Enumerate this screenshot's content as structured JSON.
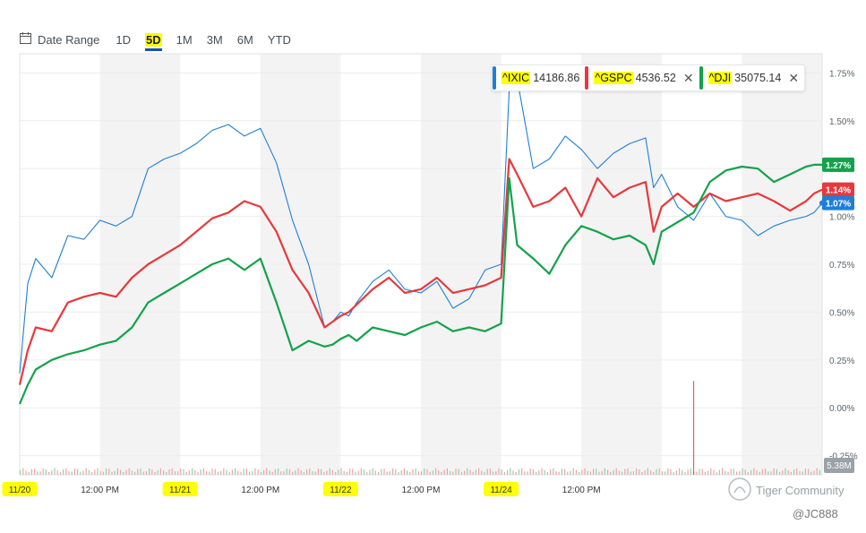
{
  "toolbar": {
    "date_range_label": "Date Range",
    "ranges": [
      "1D",
      "5D",
      "1M",
      "3M",
      "6M",
      "YTD"
    ],
    "active_range": "5D"
  },
  "legend": [
    {
      "symbol": "^IXIC",
      "value": "14186.86",
      "color": "#1e7fd6"
    },
    {
      "symbol": "^GSPC",
      "value": "4536.52",
      "color": "#e8383d"
    },
    {
      "symbol": "^DJI",
      "value": "35075.14",
      "color": "#13a24b"
    }
  ],
  "chart_data": {
    "type": "line",
    "x_ticks": [
      "11/20",
      "12:00 PM",
      "11/21",
      "12:00 PM",
      "11/22",
      "12:00 PM",
      "11/24",
      "12:00 PM"
    ],
    "highlighted_x_ticks": [
      "11/20",
      "11/21",
      "11/22",
      "11/24"
    ],
    "y_ticks": [
      "1.75%",
      "1.50%",
      "1.25%",
      "1.00%",
      "0.75%",
      "0.50%",
      "0.25%",
      "0.00%",
      "-0.25%"
    ],
    "ylim": [
      -0.35,
      1.85
    ],
    "x_range": [
      0,
      5
    ],
    "grid": true,
    "legend_position": "top-right",
    "last_value_labels": [
      {
        "series": "^DJI",
        "label": "1.27%",
        "color": "#13a24b"
      },
      {
        "series": "^GSPC",
        "label": "1.14%",
        "color": "#e8383d"
      },
      {
        "series": "^IXIC",
        "label": "1.07%",
        "color": "#1e7fd6"
      }
    ],
    "volume_label": "5.38M",
    "series": [
      {
        "name": "^IXIC",
        "color": "#1e7fd6",
        "x": [
          0,
          0.05,
          0.1,
          0.2,
          0.3,
          0.4,
          0.5,
          0.6,
          0.7,
          0.8,
          0.9,
          1.0,
          1.1,
          1.2,
          1.3,
          1.4,
          1.5,
          1.6,
          1.7,
          1.8,
          1.9,
          1.95,
          2.0,
          2.05,
          2.1,
          2.2,
          2.3,
          2.4,
          2.5,
          2.6,
          2.7,
          2.8,
          2.9,
          3.0,
          3.05,
          3.1,
          3.2,
          3.3,
          3.4,
          3.5,
          3.6,
          3.7,
          3.8,
          3.9,
          3.95,
          4.0,
          4.1,
          4.2,
          4.3,
          4.4,
          4.5,
          4.6,
          4.7,
          4.8,
          4.9,
          4.95,
          5.0
        ],
        "values": [
          0.18,
          0.65,
          0.78,
          0.68,
          0.9,
          0.88,
          0.98,
          0.95,
          1.0,
          1.25,
          1.3,
          1.33,
          1.38,
          1.45,
          1.48,
          1.42,
          1.46,
          1.28,
          0.98,
          0.75,
          0.42,
          0.45,
          0.5,
          0.48,
          0.55,
          0.66,
          0.72,
          0.62,
          0.6,
          0.66,
          0.52,
          0.57,
          0.72,
          0.75,
          1.66,
          1.72,
          1.25,
          1.3,
          1.42,
          1.35,
          1.25,
          1.33,
          1.38,
          1.41,
          1.15,
          1.22,
          1.05,
          0.98,
          1.12,
          1.0,
          0.98,
          0.9,
          0.95,
          0.98,
          1.0,
          1.02,
          1.07
        ]
      },
      {
        "name": "^GSPC",
        "color": "#e8383d",
        "x": [
          0,
          0.05,
          0.1,
          0.2,
          0.3,
          0.4,
          0.5,
          0.6,
          0.7,
          0.8,
          0.9,
          1.0,
          1.1,
          1.2,
          1.3,
          1.4,
          1.5,
          1.6,
          1.7,
          1.8,
          1.9,
          1.95,
          2.0,
          2.05,
          2.1,
          2.2,
          2.3,
          2.4,
          2.5,
          2.6,
          2.7,
          2.8,
          2.9,
          3.0,
          3.05,
          3.1,
          3.2,
          3.3,
          3.4,
          3.5,
          3.6,
          3.7,
          3.8,
          3.9,
          3.95,
          4.0,
          4.1,
          4.2,
          4.3,
          4.4,
          4.5,
          4.6,
          4.7,
          4.8,
          4.9,
          4.95,
          5.0
        ],
        "values": [
          0.12,
          0.3,
          0.42,
          0.4,
          0.55,
          0.58,
          0.6,
          0.58,
          0.68,
          0.75,
          0.8,
          0.85,
          0.92,
          0.99,
          1.02,
          1.08,
          1.05,
          0.92,
          0.72,
          0.6,
          0.42,
          0.45,
          0.48,
          0.5,
          0.54,
          0.62,
          0.68,
          0.6,
          0.62,
          0.68,
          0.6,
          0.62,
          0.64,
          0.68,
          1.3,
          1.22,
          1.05,
          1.08,
          1.15,
          1.0,
          1.2,
          1.1,
          1.15,
          1.18,
          0.92,
          1.05,
          1.12,
          1.05,
          1.12,
          1.08,
          1.1,
          1.12,
          1.08,
          1.03,
          1.08,
          1.12,
          1.14
        ]
      },
      {
        "name": "^DJI",
        "color": "#13a24b",
        "x": [
          0,
          0.05,
          0.1,
          0.2,
          0.3,
          0.4,
          0.5,
          0.6,
          0.7,
          0.8,
          0.9,
          1.0,
          1.1,
          1.2,
          1.3,
          1.4,
          1.5,
          1.6,
          1.7,
          1.8,
          1.9,
          1.95,
          2.0,
          2.05,
          2.1,
          2.2,
          2.3,
          2.4,
          2.5,
          2.6,
          2.7,
          2.8,
          2.9,
          3.0,
          3.05,
          3.1,
          3.2,
          3.3,
          3.4,
          3.5,
          3.6,
          3.7,
          3.8,
          3.9,
          3.95,
          4.0,
          4.1,
          4.2,
          4.3,
          4.4,
          4.5,
          4.6,
          4.7,
          4.8,
          4.9,
          4.95,
          5.0
        ],
        "values": [
          0.02,
          0.12,
          0.2,
          0.25,
          0.28,
          0.3,
          0.33,
          0.35,
          0.42,
          0.55,
          0.6,
          0.65,
          0.7,
          0.75,
          0.78,
          0.72,
          0.78,
          0.55,
          0.3,
          0.35,
          0.32,
          0.33,
          0.36,
          0.38,
          0.35,
          0.42,
          0.4,
          0.38,
          0.42,
          0.45,
          0.4,
          0.42,
          0.4,
          0.44,
          1.2,
          0.85,
          0.78,
          0.7,
          0.85,
          0.95,
          0.92,
          0.88,
          0.9,
          0.85,
          0.75,
          0.92,
          0.97,
          1.02,
          1.18,
          1.24,
          1.26,
          1.25,
          1.18,
          1.22,
          1.26,
          1.27,
          1.27
        ]
      }
    ],
    "volume_spike_at": 4.2
  },
  "watermark": "Tiger Community",
  "author": "@JC888"
}
